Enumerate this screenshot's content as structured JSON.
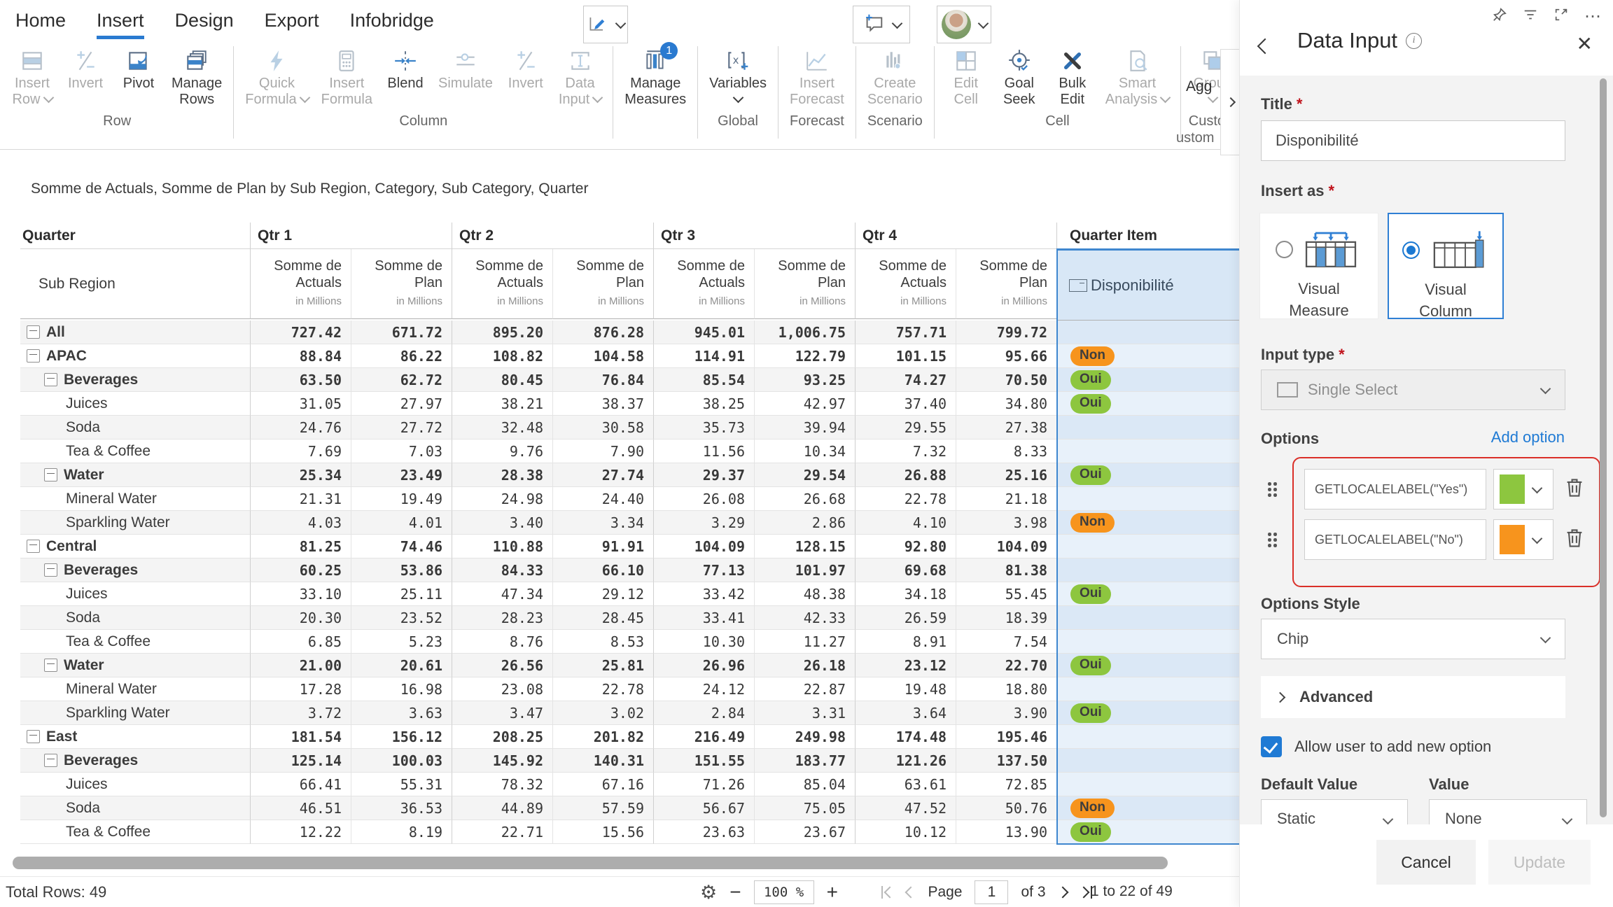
{
  "colors": {
    "accent": "#2a7ad0",
    "chip_oui": "#8DC63F",
    "chip_non": "#F7941D",
    "highlight_red": "#da2f28"
  },
  "ribbon": {
    "tabs": [
      {
        "label": "Home",
        "active": false
      },
      {
        "label": "Insert",
        "active": true
      },
      {
        "label": "Design",
        "active": false
      },
      {
        "label": "Export",
        "active": false
      },
      {
        "label": "Infobridge",
        "active": false
      }
    ],
    "groups": [
      {
        "label": "Row",
        "buttons": [
          {
            "lines": [
              "Insert",
              "Row"
            ],
            "icon": "rows",
            "enabled": false,
            "chevron": "inline"
          },
          {
            "lines": [
              "Invert"
            ],
            "icon": "invert",
            "enabled": false
          },
          {
            "lines": [
              "Pivot"
            ],
            "icon": "pivot",
            "enabled": true
          },
          {
            "lines": [
              "Manage",
              "Rows"
            ],
            "icon": "layers",
            "enabled": true
          }
        ]
      },
      {
        "label": "Column",
        "buttons": [
          {
            "lines": [
              "Quick",
              "Formula"
            ],
            "icon": "bolt",
            "enabled": false,
            "chevron": "inline"
          },
          {
            "lines": [
              "Insert",
              "Formula"
            ],
            "icon": "calc",
            "enabled": false
          },
          {
            "lines": [
              "Blend"
            ],
            "icon": "blend",
            "enabled": true
          },
          {
            "lines": [
              "Simulate"
            ],
            "icon": "slider",
            "enabled": false
          },
          {
            "lines": [
              "Invert"
            ],
            "icon": "invert",
            "enabled": false
          },
          {
            "lines": [
              "Data",
              "Input"
            ],
            "icon": "input",
            "enabled": false,
            "chevron": "inline"
          }
        ]
      },
      {
        "label": "",
        "buttons": [
          {
            "lines": [
              "Manage",
              "Measures"
            ],
            "icon": "measures",
            "enabled": true,
            "badge": "1"
          }
        ]
      },
      {
        "label": "Global",
        "buttons": [
          {
            "lines": [
              "Variables"
            ],
            "icon": "variables",
            "enabled": true,
            "chevron": "below"
          }
        ]
      },
      {
        "label": "Forecast",
        "buttons": [
          {
            "lines": [
              "Insert",
              "Forecast"
            ],
            "icon": "forecast",
            "enabled": false
          }
        ]
      },
      {
        "label": "Scenario",
        "buttons": [
          {
            "lines": [
              "Create",
              "Scenario"
            ],
            "icon": "scenario",
            "enabled": false
          }
        ]
      },
      {
        "label": "Cell",
        "buttons": [
          {
            "lines": [
              "Edit",
              "Cell"
            ],
            "icon": "editcell",
            "enabled": false
          },
          {
            "lines": [
              "Goal",
              "Seek"
            ],
            "icon": "target",
            "enabled": true
          },
          {
            "lines": [
              "Bulk",
              "Edit"
            ],
            "icon": "tools",
            "enabled": true
          },
          {
            "lines": [
              "Smart",
              "Analysis"
            ],
            "icon": "docsearch",
            "enabled": false,
            "chevron": "inline"
          }
        ]
      },
      {
        "label": "Custom",
        "buttons": [
          {
            "lines": [
              "Group"
            ],
            "icon": "group",
            "enabled": false,
            "chevron": "below"
          }
        ]
      }
    ],
    "cut_button_label": "Agg",
    "cut_group_label": "ustom"
  },
  "visual": {
    "title": "Somme de Actuals, Somme de Plan by Sub Region, Category, Sub Category, Quarter"
  },
  "table": {
    "row_dim": "Quarter",
    "sub_dim": "Sub Region",
    "quarters": [
      "Qtr 1",
      "Qtr 2",
      "Qtr 3",
      "Qtr 4"
    ],
    "quarter_item": "Quarter Item",
    "item_column": "Disponibilité",
    "measures": [
      {
        "lines": [
          "Somme de",
          "Actuals"
        ]
      },
      {
        "lines": [
          "Somme de",
          "Plan"
        ]
      }
    ],
    "unit": "in Millions",
    "rows": [
      {
        "label": "All",
        "level": 0,
        "expand": true,
        "bold": true,
        "chip": null,
        "cells": [
          "727.42",
          "671.72",
          "895.20",
          "876.28",
          "945.01",
          "1,006.75",
          "757.71",
          "799.72"
        ]
      },
      {
        "label": "APAC",
        "level": 1,
        "expand": true,
        "bold": true,
        "chip": "Non",
        "cells": [
          "88.84",
          "86.22",
          "108.82",
          "104.58",
          "114.91",
          "122.79",
          "101.15",
          "95.66"
        ]
      },
      {
        "label": "Beverages",
        "level": 2,
        "expand": true,
        "bold": true,
        "chip": "Oui",
        "cells": [
          "63.50",
          "62.72",
          "80.45",
          "76.84",
          "85.54",
          "93.25",
          "74.27",
          "70.50"
        ]
      },
      {
        "label": "Juices",
        "level": 3,
        "expand": false,
        "bold": false,
        "chip": "Oui",
        "cells": [
          "31.05",
          "27.97",
          "38.21",
          "38.37",
          "38.25",
          "42.97",
          "37.40",
          "34.80"
        ]
      },
      {
        "label": "Soda",
        "level": 3,
        "expand": false,
        "bold": false,
        "chip": null,
        "cells": [
          "24.76",
          "27.72",
          "32.48",
          "30.58",
          "35.73",
          "39.94",
          "29.55",
          "27.38"
        ]
      },
      {
        "label": "Tea & Coffee",
        "level": 3,
        "expand": false,
        "bold": false,
        "chip": null,
        "cells": [
          "7.69",
          "7.03",
          "9.76",
          "7.90",
          "11.56",
          "10.34",
          "7.32",
          "8.33"
        ]
      },
      {
        "label": "Water",
        "level": 2,
        "expand": true,
        "bold": true,
        "chip": "Oui",
        "cells": [
          "25.34",
          "23.49",
          "28.38",
          "27.74",
          "29.37",
          "29.54",
          "26.88",
          "25.16"
        ]
      },
      {
        "label": "Mineral Water",
        "level": 3,
        "expand": false,
        "bold": false,
        "chip": null,
        "cells": [
          "21.31",
          "19.49",
          "24.98",
          "24.40",
          "26.08",
          "26.68",
          "22.78",
          "21.18"
        ]
      },
      {
        "label": "Sparkling Water",
        "level": 3,
        "expand": false,
        "bold": false,
        "chip": "Non",
        "cells": [
          "4.03",
          "4.01",
          "3.40",
          "3.34",
          "3.29",
          "2.86",
          "4.10",
          "3.98"
        ]
      },
      {
        "label": "Central",
        "level": 1,
        "expand": true,
        "bold": true,
        "chip": null,
        "cells": [
          "81.25",
          "74.46",
          "110.88",
          "91.91",
          "104.09",
          "128.15",
          "92.80",
          "104.09"
        ]
      },
      {
        "label": "Beverages",
        "level": 2,
        "expand": true,
        "bold": true,
        "chip": null,
        "cells": [
          "60.25",
          "53.86",
          "84.33",
          "66.10",
          "77.13",
          "101.97",
          "69.68",
          "81.38"
        ]
      },
      {
        "label": "Juices",
        "level": 3,
        "expand": false,
        "bold": false,
        "chip": "Oui",
        "cells": [
          "33.10",
          "25.11",
          "47.34",
          "29.12",
          "33.42",
          "48.38",
          "34.18",
          "55.45"
        ]
      },
      {
        "label": "Soda",
        "level": 3,
        "expand": false,
        "bold": false,
        "chip": null,
        "cells": [
          "20.30",
          "23.52",
          "28.23",
          "28.45",
          "33.41",
          "42.33",
          "26.59",
          "18.39"
        ]
      },
      {
        "label": "Tea & Coffee",
        "level": 3,
        "expand": false,
        "bold": false,
        "chip": null,
        "cells": [
          "6.85",
          "5.23",
          "8.76",
          "8.53",
          "10.30",
          "11.27",
          "8.91",
          "7.54"
        ]
      },
      {
        "label": "Water",
        "level": 2,
        "expand": true,
        "bold": true,
        "chip": "Oui",
        "cells": [
          "21.00",
          "20.61",
          "26.56",
          "25.81",
          "26.96",
          "26.18",
          "23.12",
          "22.70"
        ]
      },
      {
        "label": "Mineral Water",
        "level": 3,
        "expand": false,
        "bold": false,
        "chip": null,
        "cells": [
          "17.28",
          "16.98",
          "23.08",
          "22.78",
          "24.12",
          "22.87",
          "19.48",
          "18.80"
        ]
      },
      {
        "label": "Sparkling Water",
        "level": 3,
        "expand": false,
        "bold": false,
        "chip": "Oui",
        "cells": [
          "3.72",
          "3.63",
          "3.47",
          "3.02",
          "2.84",
          "3.31",
          "3.64",
          "3.90"
        ]
      },
      {
        "label": "East",
        "level": 1,
        "expand": true,
        "bold": true,
        "chip": null,
        "cells": [
          "181.54",
          "156.12",
          "208.25",
          "201.82",
          "216.49",
          "249.98",
          "174.48",
          "195.46"
        ]
      },
      {
        "label": "Beverages",
        "level": 2,
        "expand": true,
        "bold": true,
        "chip": null,
        "cells": [
          "125.14",
          "100.03",
          "145.92",
          "140.31",
          "151.55",
          "183.77",
          "121.26",
          "137.50"
        ]
      },
      {
        "label": "Juices",
        "level": 3,
        "expand": false,
        "bold": false,
        "chip": null,
        "cells": [
          "66.41",
          "55.31",
          "78.32",
          "67.16",
          "71.26",
          "85.04",
          "63.61",
          "72.85"
        ]
      },
      {
        "label": "Soda",
        "level": 3,
        "expand": false,
        "bold": false,
        "chip": "Non",
        "cells": [
          "46.51",
          "36.53",
          "44.89",
          "57.59",
          "56.67",
          "75.05",
          "47.52",
          "50.76"
        ]
      },
      {
        "label": "Tea & Coffee",
        "level": 3,
        "expand": false,
        "bold": false,
        "chip": "Oui",
        "cells": [
          "12.22",
          "8.19",
          "22.71",
          "15.56",
          "23.63",
          "23.67",
          "10.12",
          "13.90"
        ]
      }
    ]
  },
  "statusbar": {
    "total_rows": "Total Rows: 49",
    "zoom": "100 %",
    "page_label": "Page",
    "page_value": "1",
    "of_label": "of 3",
    "range": "1 to 22 of 49"
  },
  "panel": {
    "title": "Data Input",
    "title_label": "Title",
    "title_value": "Disponibilité",
    "insert_as_label": "Insert as",
    "insert_options": [
      {
        "label_lines": [
          "Visual",
          "Measure"
        ],
        "selected": false
      },
      {
        "label_lines": [
          "Visual",
          "Column"
        ],
        "selected": true
      }
    ],
    "input_type_label": "Input type",
    "input_type_value": "Single Select",
    "options_label": "Options",
    "add_option_label": "Add option",
    "option_rows": [
      {
        "value": "GETLOCALELABEL(\"Yes\")",
        "color": "#8DC63F"
      },
      {
        "value": "GETLOCALELABEL(\"No\")",
        "color": "#F7941D"
      }
    ],
    "options_style_label": "Options Style",
    "options_style_value": "Chip",
    "advanced_label": "Advanced",
    "allow_label": "Allow user to add new option",
    "default_value_label": "Default Value",
    "default_value": "Static",
    "value_label": "Value",
    "value_value": "None",
    "cancel_label": "Cancel",
    "update_label": "Update"
  }
}
